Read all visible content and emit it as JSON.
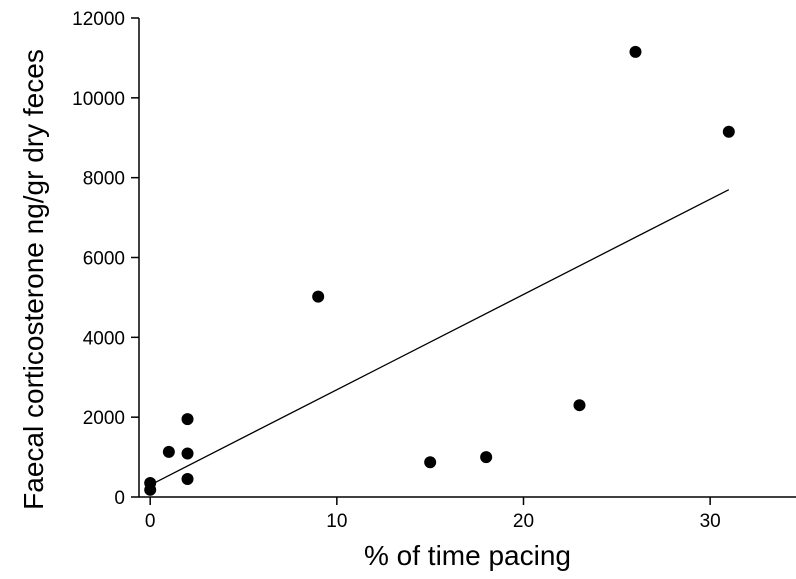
{
  "chart_data": {
    "type": "scatter",
    "title": "",
    "xlabel": "% of time pacing",
    "ylabel": "Faecal corticosterone ng/gr dry feces",
    "xlim": [
      -0.6,
      34.6
    ],
    "ylim": [
      0,
      12000
    ],
    "xticks": [
      0,
      10,
      20,
      30
    ],
    "yticks": [
      0,
      2000,
      4000,
      6000,
      8000,
      10000,
      12000
    ],
    "xtick_labels": [
      "0",
      "10",
      "20",
      "30"
    ],
    "ytick_labels": [
      "0",
      "2000",
      "4000",
      "6000",
      "8000",
      "10000",
      "12000"
    ],
    "grid": false,
    "series": [
      {
        "points": [
          {
            "x": 0,
            "y": 350
          },
          {
            "x": 0,
            "y": 180
          },
          {
            "x": 1,
            "y": 1130
          },
          {
            "x": 2,
            "y": 1950
          },
          {
            "x": 2,
            "y": 1090
          },
          {
            "x": 2,
            "y": 450
          },
          {
            "x": 9,
            "y": 5020
          },
          {
            "x": 15,
            "y": 870
          },
          {
            "x": 18,
            "y": 1000
          },
          {
            "x": 23,
            "y": 2300
          },
          {
            "x": 26,
            "y": 11150
          },
          {
            "x": 31,
            "y": 9150
          }
        ]
      }
    ],
    "trendline": {
      "x": [
        0,
        31
      ],
      "y": [
        300,
        7700
      ]
    }
  }
}
